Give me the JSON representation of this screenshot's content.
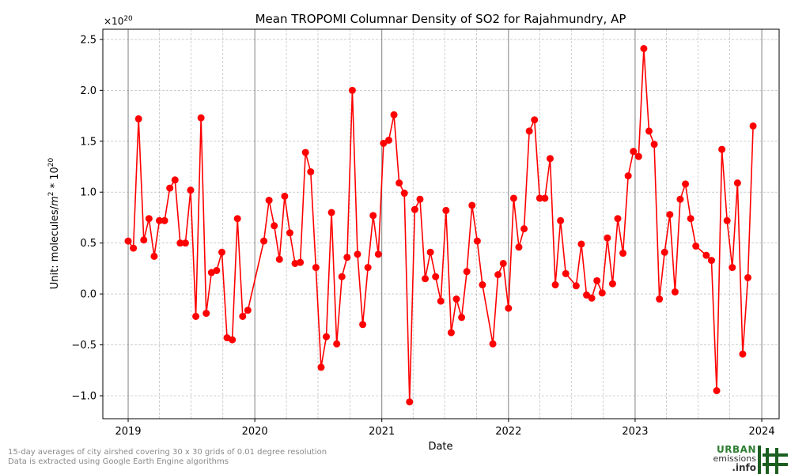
{
  "chart_data": {
    "type": "line",
    "title": "Mean TROPOMI Columnar Density of SO2 for Rajahmundry, AP",
    "xlabel": "Date",
    "ylabel_main": "Unit: molecules/",
    "ylabel_m": "m",
    "ylabel_mexp": "2",
    "ylabel_mid": " * 10",
    "ylabel_exp": "20",
    "offset_base": "×10",
    "offset_exp": "20",
    "xlim": [
      "2018-10-20",
      "2024-02-20"
    ],
    "ylim": [
      -1.225,
      2.6
    ],
    "x_ticks": [
      "2019",
      "2020",
      "2021",
      "2022",
      "2023",
      "2024"
    ],
    "y_ticks": [
      "−1.0",
      "−0.5",
      "0.0",
      "0.5",
      "1.0",
      "1.5",
      "2.0",
      "2.5"
    ],
    "y_tick_values": [
      -1.0,
      -0.5,
      0.0,
      0.5,
      1.0,
      1.5,
      2.0,
      2.5
    ],
    "grid": true,
    "line_color": "#ff0000",
    "series": [
      {
        "points": [
          [
            "2019-01-01",
            0.52
          ],
          [
            "2019-01-16",
            0.45
          ],
          [
            "2019-01-31",
            1.72
          ],
          [
            "2019-02-15",
            0.53
          ],
          [
            "2019-03-02",
            0.74
          ],
          [
            "2019-03-17",
            0.37
          ],
          [
            "2019-04-01",
            0.72
          ],
          [
            "2019-04-16",
            0.72
          ],
          [
            "2019-05-01",
            1.04
          ],
          [
            "2019-05-16",
            1.12
          ],
          [
            "2019-05-31",
            0.5
          ],
          [
            "2019-06-15",
            0.5
          ],
          [
            "2019-06-30",
            1.02
          ],
          [
            "2019-07-15",
            -0.22
          ],
          [
            "2019-07-30",
            1.73
          ],
          [
            "2019-08-14",
            -0.19
          ],
          [
            "2019-08-29",
            0.21
          ],
          [
            "2019-09-13",
            0.23
          ],
          [
            "2019-09-28",
            0.41
          ],
          [
            "2019-10-13",
            -0.43
          ],
          [
            "2019-10-28",
            -0.45
          ],
          [
            "2019-11-12",
            0.74
          ],
          [
            "2019-11-27",
            -0.22
          ],
          [
            "2019-12-12",
            -0.16
          ],
          [
            "2020-01-27",
            0.52
          ],
          [
            "2020-02-11",
            0.92
          ],
          [
            "2020-02-26",
            0.67
          ],
          [
            "2020-03-12",
            0.34
          ],
          [
            "2020-03-27",
            0.96
          ],
          [
            "2020-04-11",
            0.6
          ],
          [
            "2020-04-26",
            0.3
          ],
          [
            "2020-05-11",
            0.31
          ],
          [
            "2020-05-26",
            1.39
          ],
          [
            "2020-06-10",
            1.2
          ],
          [
            "2020-06-25",
            0.26
          ],
          [
            "2020-07-10",
            -0.72
          ],
          [
            "2020-07-25",
            -0.42
          ],
          [
            "2020-08-09",
            0.8
          ],
          [
            "2020-08-24",
            -0.49
          ],
          [
            "2020-09-08",
            0.17
          ],
          [
            "2020-09-23",
            0.36
          ],
          [
            "2020-10-08",
            2.0
          ],
          [
            "2020-10-23",
            0.39
          ],
          [
            "2020-11-07",
            -0.3
          ],
          [
            "2020-11-22",
            0.26
          ],
          [
            "2020-12-07",
            0.77
          ],
          [
            "2020-12-22",
            0.39
          ],
          [
            "2021-01-06",
            1.48
          ],
          [
            "2021-01-21",
            1.51
          ],
          [
            "2021-02-05",
            1.76
          ],
          [
            "2021-02-20",
            1.09
          ],
          [
            "2021-03-07",
            0.99
          ],
          [
            "2021-03-22",
            -1.06
          ],
          [
            "2021-04-06",
            0.83
          ],
          [
            "2021-04-21",
            0.93
          ],
          [
            "2021-05-06",
            0.15
          ],
          [
            "2021-05-21",
            0.41
          ],
          [
            "2021-06-05",
            0.17
          ],
          [
            "2021-06-20",
            -0.07
          ],
          [
            "2021-07-05",
            0.82
          ],
          [
            "2021-07-20",
            -0.38
          ],
          [
            "2021-08-04",
            -0.05
          ],
          [
            "2021-08-19",
            -0.23
          ],
          [
            "2021-09-03",
            0.22
          ],
          [
            "2021-09-18",
            0.87
          ],
          [
            "2021-10-03",
            0.52
          ],
          [
            "2021-10-18",
            0.09
          ],
          [
            "2021-11-17",
            -0.49
          ],
          [
            "2021-12-02",
            0.19
          ],
          [
            "2021-12-17",
            0.3
          ],
          [
            "2022-01-01",
            -0.14
          ],
          [
            "2022-01-16",
            0.94
          ],
          [
            "2022-01-31",
            0.46
          ],
          [
            "2022-02-15",
            0.64
          ],
          [
            "2022-03-02",
            1.6
          ],
          [
            "2022-03-17",
            1.71
          ],
          [
            "2022-04-01",
            0.94
          ],
          [
            "2022-04-16",
            0.94
          ],
          [
            "2022-05-01",
            1.33
          ],
          [
            "2022-05-16",
            0.09
          ],
          [
            "2022-05-31",
            0.72
          ],
          [
            "2022-06-15",
            0.2
          ],
          [
            "2022-07-15",
            0.08
          ],
          [
            "2022-07-30",
            0.49
          ],
          [
            "2022-08-14",
            -0.01
          ],
          [
            "2022-08-29",
            -0.04
          ],
          [
            "2022-09-13",
            0.13
          ],
          [
            "2022-09-28",
            0.01
          ],
          [
            "2022-10-13",
            0.55
          ],
          [
            "2022-10-28",
            0.1
          ],
          [
            "2022-11-12",
            0.74
          ],
          [
            "2022-11-27",
            0.4
          ],
          [
            "2022-12-12",
            1.16
          ],
          [
            "2022-12-27",
            1.4
          ],
          [
            "2023-01-11",
            1.35
          ],
          [
            "2023-01-26",
            2.41
          ],
          [
            "2023-02-10",
            1.6
          ],
          [
            "2023-02-25",
            1.47
          ],
          [
            "2023-03-12",
            -0.05
          ],
          [
            "2023-03-27",
            0.41
          ],
          [
            "2023-04-11",
            0.78
          ],
          [
            "2023-04-26",
            0.02
          ],
          [
            "2023-05-11",
            0.93
          ],
          [
            "2023-05-26",
            1.08
          ],
          [
            "2023-06-10",
            0.74
          ],
          [
            "2023-06-25",
            0.47
          ],
          [
            "2023-07-25",
            0.38
          ],
          [
            "2023-08-09",
            0.33
          ],
          [
            "2023-08-24",
            -0.95
          ],
          [
            "2023-09-08",
            1.42
          ],
          [
            "2023-09-23",
            0.72
          ],
          [
            "2023-10-08",
            0.26
          ],
          [
            "2023-10-23",
            1.09
          ],
          [
            "2023-11-07",
            -0.59
          ],
          [
            "2023-11-22",
            0.16
          ],
          [
            "2023-12-07",
            1.65
          ]
        ]
      }
    ]
  },
  "footnotes": {
    "line1": "15-day averages of city airshed covering 30 x 30 grids of 0.01 degree resolution",
    "line2": "Data is extracted using Google Earth Engine algorithms"
  },
  "logo": {
    "line1": "URBAN",
    "line2": "emissions",
    "line3": ".info"
  }
}
